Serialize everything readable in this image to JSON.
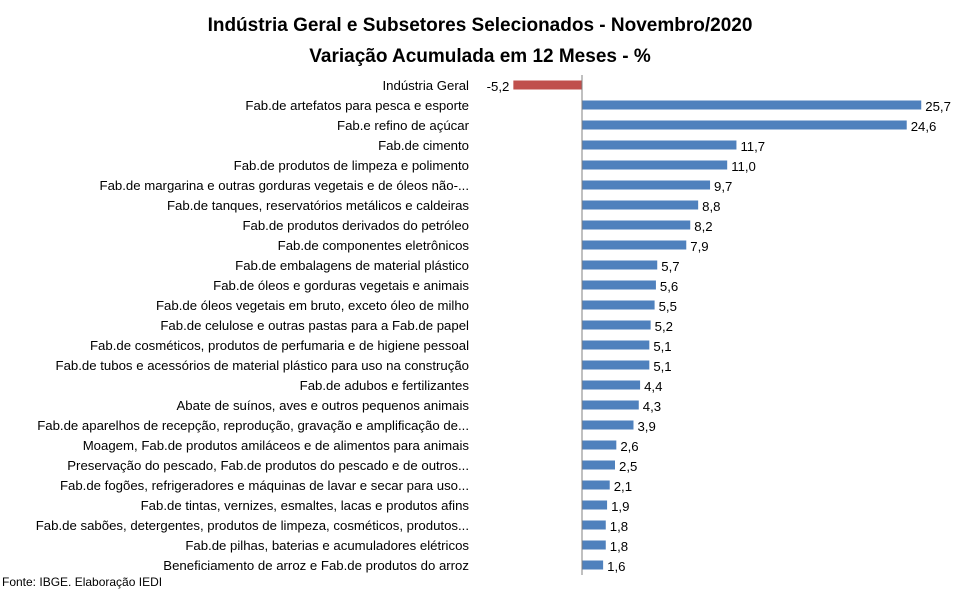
{
  "chart_data": {
    "type": "bar",
    "orientation": "horizontal",
    "title": "Indústria Geral e Subsetores Selecionados - Novembro/2020",
    "subtitle": "Variação Acumulada em 12 Meses - %",
    "categories": [
      "Indústria Geral",
      "Fab.de artefatos para pesca e esporte",
      "Fab.e refino de açúcar",
      "Fab.de cimento",
      "Fab.de produtos de limpeza e polimento",
      "Fab.de margarina e outras gorduras vegetais e de óleos não-...",
      "Fab.de tanques, reservatórios metálicos e caldeiras",
      "Fab.de produtos derivados do petróleo",
      "Fab.de componentes eletrônicos",
      "Fab.de embalagens de material plástico",
      "Fab.de óleos e gorduras vegetais e animais",
      "Fab.de óleos vegetais em bruto, exceto óleo de milho",
      "Fab.de celulose e outras pastas para a Fab.de papel",
      "Fab.de cosméticos, produtos de perfumaria e de higiene pessoal",
      "Fab.de tubos e acessórios de material plástico para uso na construção",
      "Fab.de adubos e fertilizantes",
      "Abate de suínos, aves e outros pequenos animais",
      "Fab.de aparelhos de recepção, reprodução, gravação e amplificação de...",
      "Moagem, Fab.de produtos amiláceos e de alimentos para animais",
      "Preservação do pescado, Fab.de produtos do pescado e de outros...",
      "Fab.de fogões, refrigeradores e máquinas de lavar e secar para uso...",
      "Fab.de tintas, vernizes, esmaltes, lacas e produtos afins",
      "Fab.de sabões, detergentes, produtos de limpeza, cosméticos, produtos...",
      "Fab.de pilhas, baterias e acumuladores elétricos",
      "Beneficiamento de arroz e Fab.de produtos do arroz"
    ],
    "values": [
      -5.2,
      25.7,
      24.6,
      11.7,
      11.0,
      9.7,
      8.8,
      8.2,
      7.9,
      5.7,
      5.6,
      5.5,
      5.2,
      5.1,
      5.1,
      4.4,
      4.3,
      3.9,
      2.6,
      2.5,
      2.1,
      1.9,
      1.8,
      1.8,
      1.6
    ],
    "value_labels": [
      "-5,2",
      "25,7",
      "24,6",
      "11,7",
      "11,0",
      "9,7",
      "8,8",
      "8,2",
      "7,9",
      "5,7",
      "5,6",
      "5,5",
      "5,2",
      "5,1",
      "5,1",
      "4,4",
      "4,3",
      "3,9",
      "2,6",
      "2,5",
      "2,1",
      "1,9",
      "1,8",
      "1,8",
      "1,6"
    ],
    "highlight_index": 0,
    "xlim": [
      -5.2,
      25.7
    ],
    "grid": false,
    "legend": "none",
    "colors": {
      "bar": "#4f81bd",
      "highlight": "#c0504d",
      "axis": "#808080"
    }
  },
  "source": "Fonte: IBGE. Elaboração IEDI"
}
